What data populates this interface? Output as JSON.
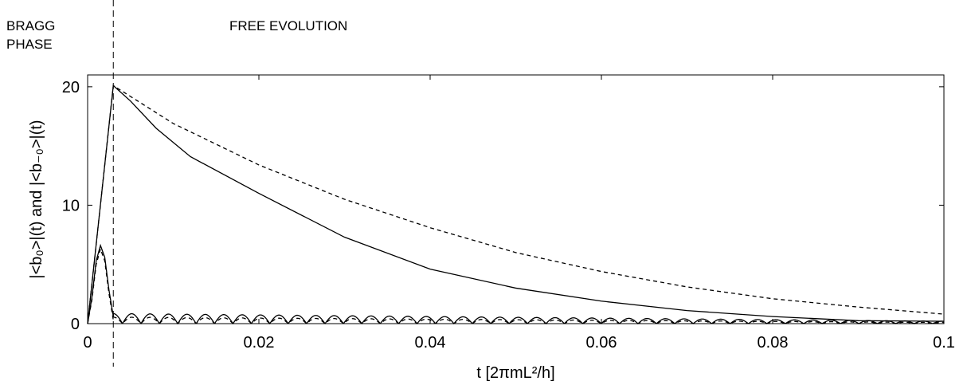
{
  "annotations": {
    "bragg_phase": "BRAGG PHASE",
    "free_evolution": "FREE EVOLUTION"
  },
  "chart_data": {
    "type": "line",
    "title": "",
    "xlabel": "t [2πmL²/h]",
    "ylabel": "|<b₀>|(t) and |<b₋₀>|(t)",
    "xlim": [
      0,
      0.1
    ],
    "ylim": [
      0,
      21
    ],
    "xticks": [
      "0",
      "0.02",
      "0.04",
      "0.06",
      "0.08",
      "0.1"
    ],
    "xtick_values": [
      0,
      0.02,
      0.04,
      0.06,
      0.08,
      0.1
    ],
    "yticks": [
      "0",
      "10",
      "20"
    ],
    "ytick_values": [
      0,
      10,
      20
    ],
    "grid": false,
    "legend": "none",
    "phase_boundary_t": 0.003,
    "series": [
      {
        "style": "solid",
        "x": [
          0,
          0.003,
          0.005,
          0.008,
          0.012,
          0.02,
          0.03,
          0.04,
          0.05,
          0.06,
          0.07,
          0.08,
          0.09,
          0.1
        ],
        "y": [
          0,
          20.1,
          18.8,
          16.5,
          14.1,
          11.0,
          7.3,
          4.6,
          3.0,
          1.9,
          1.1,
          0.6,
          0.25,
          0.2
        ]
      },
      {
        "style": "dashed",
        "x": [
          0,
          0.003,
          0.01,
          0.02,
          0.03,
          0.04,
          0.05,
          0.06,
          0.07,
          0.08,
          0.09,
          0.1
        ],
        "y": [
          0,
          20.1,
          16.9,
          13.4,
          10.5,
          8.1,
          6.0,
          4.4,
          3.1,
          2.1,
          1.4,
          0.8
        ]
      },
      {
        "style": "solid",
        "x": [
          0,
          0.0005,
          0.001,
          0.0015,
          0.002,
          0.0025,
          0.003,
          0.004
        ],
        "y": [
          0,
          2.2,
          5.3,
          6.6,
          5.6,
          2.8,
          0.6,
          0.6
        ],
        "oscillation": {
          "from": 0.003,
          "to": 0.1,
          "period": 0.00215,
          "amplitude_start": 0.85,
          "amplitude_end": 0.2
        }
      },
      {
        "style": "dashed",
        "x": [
          0,
          0.0005,
          0.001,
          0.0015,
          0.002,
          0.0025,
          0.003,
          0.004
        ],
        "y": [
          0,
          2.0,
          5.0,
          6.3,
          5.3,
          2.5,
          0.3,
          0.3
        ],
        "oscillation": {
          "from": 0.003,
          "to": 0.1,
          "period": 0.00215,
          "amplitude_start": 0.55,
          "amplitude_end": 0.1
        }
      }
    ]
  }
}
